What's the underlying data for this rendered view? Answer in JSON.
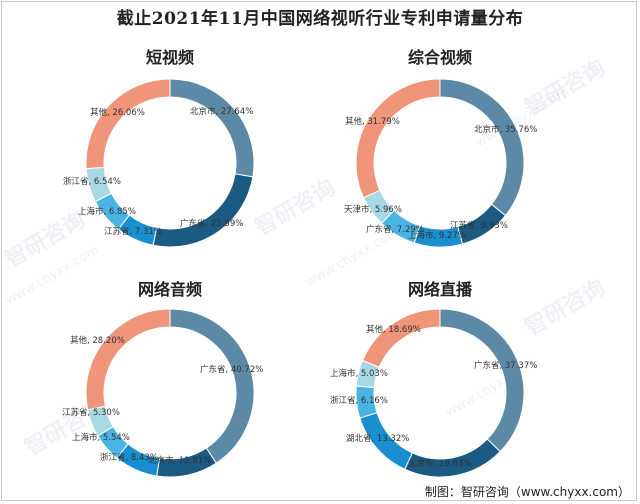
{
  "title": "截止2021年11月中国网络视听行业专利申请量分布",
  "source": "制图：智研咨询（www.chyxx.com）",
  "watermark": {
    "brand": "智研咨询",
    "url": "www.chyxx.com"
  },
  "colors": {
    "slate_blue": "#5b89a6",
    "navy_blue": "#1b5a82",
    "medium_blue": "#1a8fd0",
    "sky_blue": "#4ab3e3",
    "light_cyan": "#a8d8e3",
    "salmon": "#f0957a"
  },
  "chart_data": [
    {
      "type": "pie",
      "title": "短视频",
      "labels": [
        "北京市",
        "广东省",
        "江苏省",
        "上海市",
        "浙江省",
        "其他"
      ],
      "values": [
        27.64,
        25.59,
        7.31,
        6.85,
        6.54,
        26.06
      ],
      "value_labels": [
        "北京市, 27.64%",
        "广东省, 25.59%",
        "江苏省, 7.31%",
        "上海市, 6.85%",
        "浙江省, 6.54%",
        "其他, 26.06%"
      ],
      "colors": [
        "#5b89a6",
        "#1b5a82",
        "#1a8fd0",
        "#4ab3e3",
        "#a8d8e3",
        "#f0957a"
      ]
    },
    {
      "type": "pie",
      "title": "综合视频",
      "labels": [
        "北京市",
        "江苏省",
        "上海市",
        "广东省",
        "天津市",
        "其他"
      ],
      "values": [
        35.76,
        9.93,
        9.27,
        7.29,
        5.96,
        31.79
      ],
      "value_labels": [
        "北京市, 35.76%",
        "江苏省, 9.93%",
        "上海市, 9.27%",
        "广东省, 7.29%",
        "天津市, 5.96%",
        "其他, 31.79%"
      ],
      "colors": [
        "#5b89a6",
        "#1b5a82",
        "#1a8fd0",
        "#4ab3e3",
        "#a8d8e3",
        "#f0957a"
      ]
    },
    {
      "type": "pie",
      "title": "网络音频",
      "labels": [
        "广东省",
        "北京市",
        "浙江省",
        "上海市",
        "江苏省",
        "其他"
      ],
      "values": [
        40.72,
        11.81,
        8.43,
        5.54,
        5.3,
        28.2
      ],
      "value_labels": [
        "广东省, 40.72%",
        "北京市, 11.81%",
        "浙江省, 8.43%",
        "上海市, 5.54%",
        "江苏省, 5.30%",
        "其他, 28.20%"
      ],
      "colors": [
        "#5b89a6",
        "#1b5a82",
        "#1a8fd0",
        "#4ab3e3",
        "#a8d8e3",
        "#f0957a"
      ]
    },
    {
      "type": "pie",
      "title": "网络直播",
      "labels": [
        "广东省",
        "北京市",
        "湖北省",
        "浙江省",
        "上海市",
        "其他"
      ],
      "values": [
        37.37,
        19.63,
        13.32,
        6.16,
        5.03,
        18.69
      ],
      "value_labels": [
        "广东省, 37.37%",
        "北京市, 19.63%",
        "湖北省, 13.32%",
        "浙江省, 6.16%",
        "上海市, 5.03%",
        "其他, 18.69%"
      ],
      "colors": [
        "#5b89a6",
        "#1b5a82",
        "#1a8fd0",
        "#4ab3e3",
        "#a8d8e3",
        "#f0957a"
      ]
    }
  ]
}
